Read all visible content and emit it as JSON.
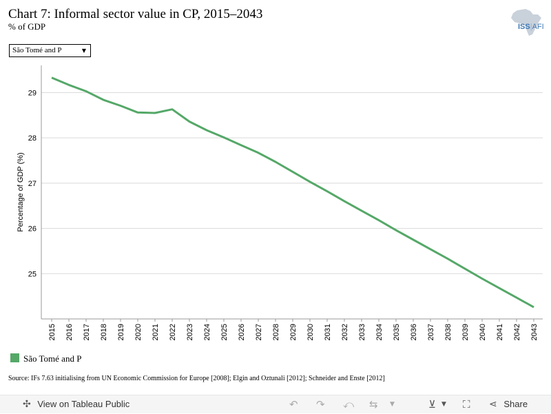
{
  "header": {
    "title": "Chart 7: Informal sector value in CP, 2015–2043",
    "subtitle": "% of GDP",
    "logo_text_a": "ISS",
    "logo_text_b": "AFI"
  },
  "filter": {
    "selected": "São Tomé and P"
  },
  "legend": {
    "label": "São Tomé and P",
    "color": "#55a868"
  },
  "source": "Source: IFs 7.63 initialising from UN Economic Commission for Europe [2008]; Elgin and Oztunali [2012]; Schneider and Enste [2012]",
  "toolbar": {
    "view_label": "View on Tableau Public",
    "share_label": "Share"
  },
  "chart_data": {
    "type": "line",
    "ylabel": "Percentage of GDP (%)",
    "ylim": [
      24.0,
      29.6
    ],
    "yticks": [
      25,
      26,
      27,
      28,
      29
    ],
    "grid": true,
    "x": [
      "2015",
      "2016",
      "2017",
      "2018",
      "2019",
      "2020",
      "2021",
      "2022",
      "2023",
      "2024",
      "2025",
      "2026",
      "2027",
      "2028",
      "2029",
      "2030",
      "2031",
      "2032",
      "2033",
      "2034",
      "2035",
      "2036",
      "2037",
      "2038",
      "2039",
      "2040",
      "2041",
      "2042",
      "2043"
    ],
    "series": [
      {
        "name": "São Tomé and P",
        "color": "#55a868",
        "values": [
          29.33,
          29.17,
          29.03,
          28.84,
          28.71,
          28.56,
          28.55,
          28.63,
          28.36,
          28.17,
          28.01,
          27.84,
          27.67,
          27.47,
          27.25,
          27.03,
          26.82,
          26.6,
          26.39,
          26.18,
          25.96,
          25.75,
          25.54,
          25.33,
          25.11,
          24.89,
          24.68,
          24.47,
          24.26
        ]
      }
    ]
  }
}
